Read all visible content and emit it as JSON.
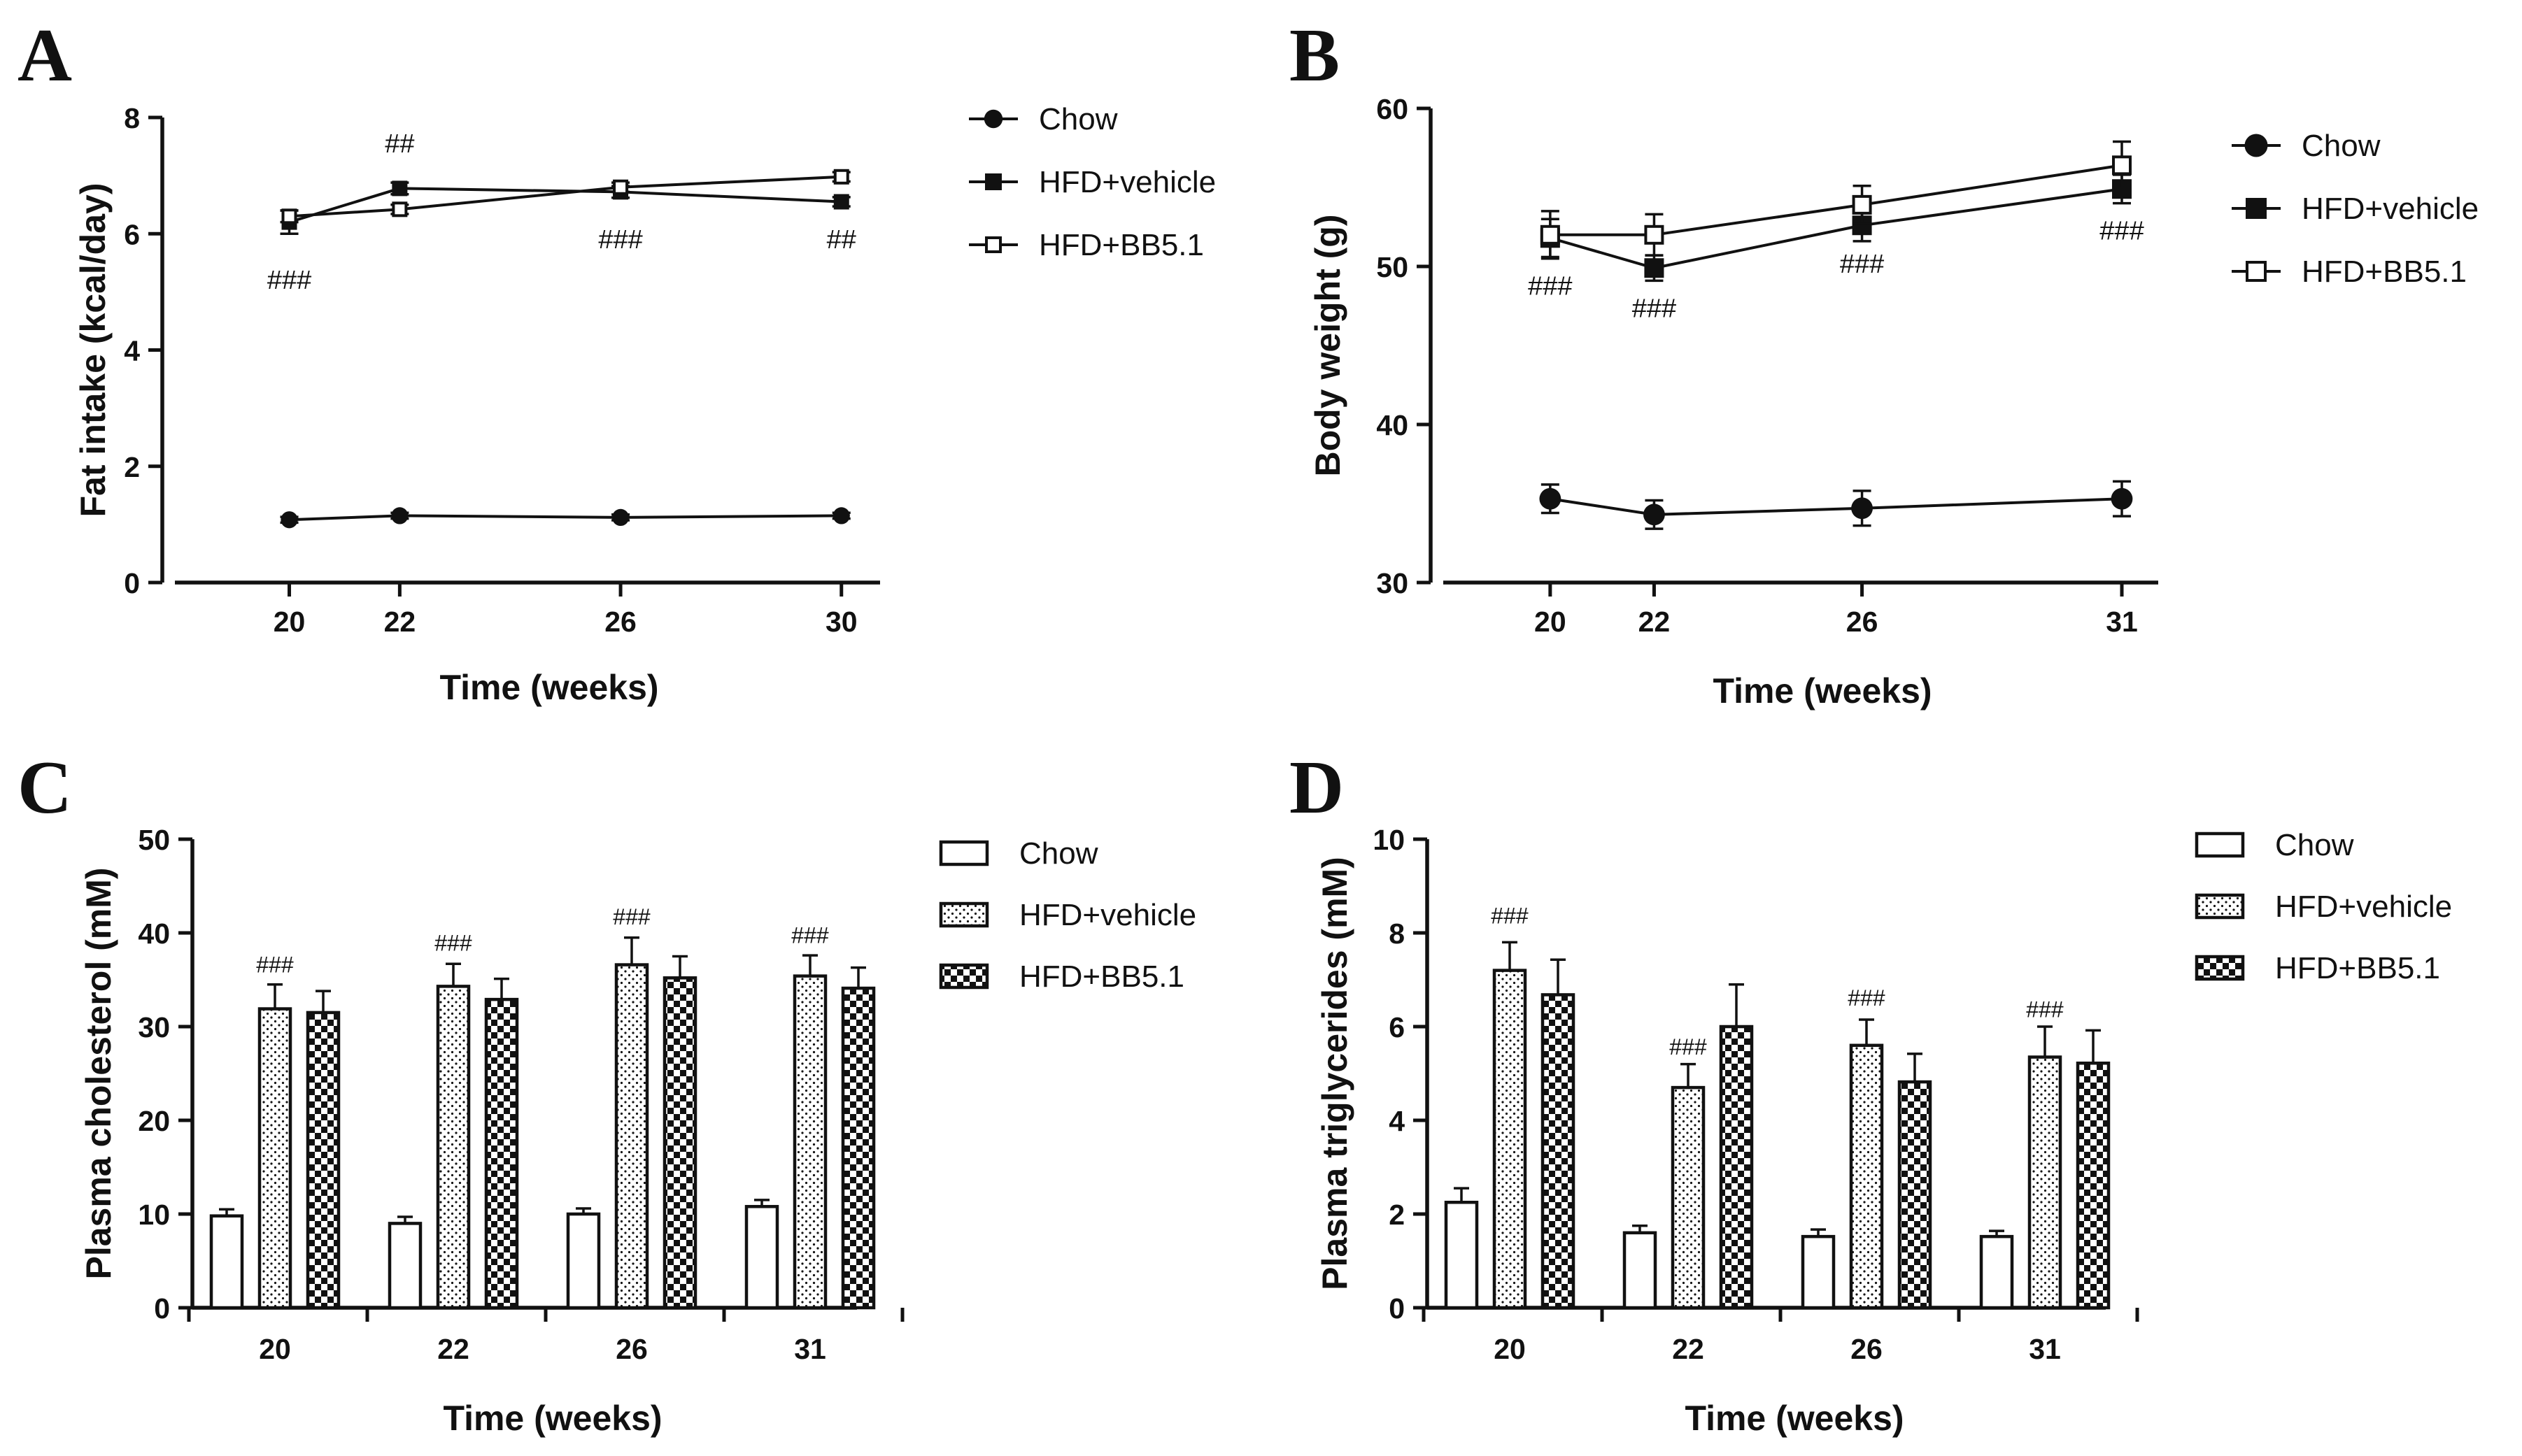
{
  "colors": {
    "ink": "#111111",
    "background": "#ffffff"
  },
  "chart_data": [
    {
      "panel": "A",
      "type": "line",
      "xlabel": "Time (weeks)",
      "ylabel": "Fat intake (kcal/day)",
      "ylim": [
        0,
        8
      ],
      "yticks": [
        0,
        2,
        4,
        6,
        8
      ],
      "x": [
        20,
        22,
        26,
        30
      ],
      "xlim": [
        17.7,
        30.7
      ],
      "legend_position": "top-right",
      "series": [
        {
          "name": "Chow",
          "marker": "circle-filled",
          "values": [
            1.08,
            1.15,
            1.12,
            1.15
          ],
          "err": [
            0.05,
            0.05,
            0.05,
            0.05
          ]
        },
        {
          "name": "HFD+vehicle",
          "marker": "square-filled",
          "values": [
            6.2,
            6.78,
            6.72,
            6.55
          ],
          "err": [
            0.2,
            0.1,
            0.1,
            0.08
          ]
        },
        {
          "name": "HFD+BB5.1",
          "marker": "square-open",
          "values": [
            6.3,
            6.42,
            6.8,
            6.98
          ],
          "err": [
            0.1,
            0.08,
            0.08,
            0.08
          ]
        }
      ],
      "annotations": [
        {
          "text": "###",
          "x": 20,
          "y": 5.05
        },
        {
          "text": "##",
          "x": 22,
          "y": 7.4
        },
        {
          "text": "###",
          "x": 26,
          "y": 5.75
        },
        {
          "text": "##",
          "x": 30,
          "y": 5.75
        }
      ]
    },
    {
      "panel": "B",
      "type": "line",
      "xlabel": "Time (weeks)",
      "ylabel": "Body weight  (g)",
      "ylim": [
        30,
        60
      ],
      "yticks": [
        30,
        40,
        50,
        60
      ],
      "x": [
        20,
        22,
        26,
        31
      ],
      "xlim": [
        17.7,
        31.7
      ],
      "legend_position": "top-right",
      "series": [
        {
          "name": "Chow",
          "marker": "circle-filled",
          "values": [
            35.3,
            34.3,
            34.7,
            35.3
          ],
          "err": [
            0.9,
            0.9,
            1.1,
            1.1
          ]
        },
        {
          "name": "HFD+vehicle",
          "marker": "square-filled",
          "values": [
            51.8,
            49.9,
            52.6,
            54.9
          ],
          "err": [
            1.2,
            0.8,
            1.0,
            0.9
          ]
        },
        {
          "name": "HFD+BB5.1",
          "marker": "square-open",
          "values": [
            52.0,
            52.0,
            53.9,
            56.4
          ],
          "err": [
            1.5,
            1.3,
            1.2,
            1.5
          ]
        }
      ],
      "annotations": [
        {
          "text": "###",
          "x": 20,
          "y": 48.2
        },
        {
          "text": "###",
          "x": 22,
          "y": 46.8
        },
        {
          "text": "###",
          "x": 26,
          "y": 49.6
        },
        {
          "text": "###",
          "x": 31,
          "y": 51.7
        }
      ]
    },
    {
      "panel": "C",
      "type": "bar",
      "xlabel": "Time (weeks)",
      "ylabel": "Plasma cholesterol (mM)",
      "ylim": [
        0,
        50
      ],
      "yticks": [
        0,
        10,
        20,
        30,
        40,
        50
      ],
      "categories": [
        "20",
        "22",
        "26",
        "31"
      ],
      "legend_position": "top-right",
      "series": [
        {
          "name": "Chow",
          "pattern": "open",
          "values": [
            9.8,
            9.0,
            10.0,
            10.8
          ],
          "err": [
            0.7,
            0.7,
            0.6,
            0.7
          ]
        },
        {
          "name": "HFD+vehicle",
          "pattern": "dotted",
          "values": [
            31.9,
            34.3,
            36.6,
            35.4
          ],
          "err": [
            2.6,
            2.4,
            2.9,
            2.2
          ]
        },
        {
          "name": "HFD+BB5.1",
          "pattern": "checker",
          "values": [
            31.5,
            32.9,
            35.2,
            34.1
          ],
          "err": [
            2.3,
            2.2,
            2.3,
            2.2
          ]
        }
      ],
      "annotations": [
        {
          "text": "###",
          "category": "20",
          "series": "HFD+vehicle",
          "y": 35.8
        },
        {
          "text": "###",
          "category": "22",
          "series": "HFD+vehicle",
          "y": 38.1
        },
        {
          "text": "###",
          "category": "26",
          "series": "HFD+vehicle",
          "y": 40.9
        },
        {
          "text": "###",
          "category": "31",
          "series": "HFD+vehicle",
          "y": 38.9
        }
      ]
    },
    {
      "panel": "D",
      "type": "bar",
      "xlabel": "Time (weeks)",
      "ylabel": "Plasma triglycerides (mM)",
      "ylim": [
        0,
        10
      ],
      "yticks": [
        0,
        2,
        4,
        6,
        8,
        10
      ],
      "categories": [
        "20",
        "22",
        "26",
        "31"
      ],
      "legend_position": "top-right",
      "series": [
        {
          "name": "Chow",
          "pattern": "open",
          "values": [
            2.25,
            1.6,
            1.52,
            1.52
          ],
          "err": [
            0.3,
            0.15,
            0.15,
            0.12
          ]
        },
        {
          "name": "HFD+vehicle",
          "pattern": "dotted",
          "values": [
            7.2,
            4.7,
            5.6,
            5.35
          ],
          "err": [
            0.6,
            0.5,
            0.55,
            0.65
          ]
        },
        {
          "name": "HFD+BB5.1",
          "pattern": "checker",
          "values": [
            6.68,
            6.0,
            4.82,
            5.22
          ],
          "err": [
            0.75,
            0.9,
            0.6,
            0.7
          ]
        }
      ],
      "annotations": [
        {
          "text": "###",
          "category": "20",
          "series": "HFD+vehicle",
          "y": 8.2
        },
        {
          "text": "###",
          "category": "22",
          "series": "HFD+Vehicle",
          "y": 5.4
        },
        {
          "text": "###",
          "category": "26",
          "series": "HFD+vehicle",
          "y": 6.45
        },
        {
          "text": "###",
          "category": "31",
          "series": "HFD+vehicle",
          "y": 6.2
        }
      ]
    }
  ]
}
